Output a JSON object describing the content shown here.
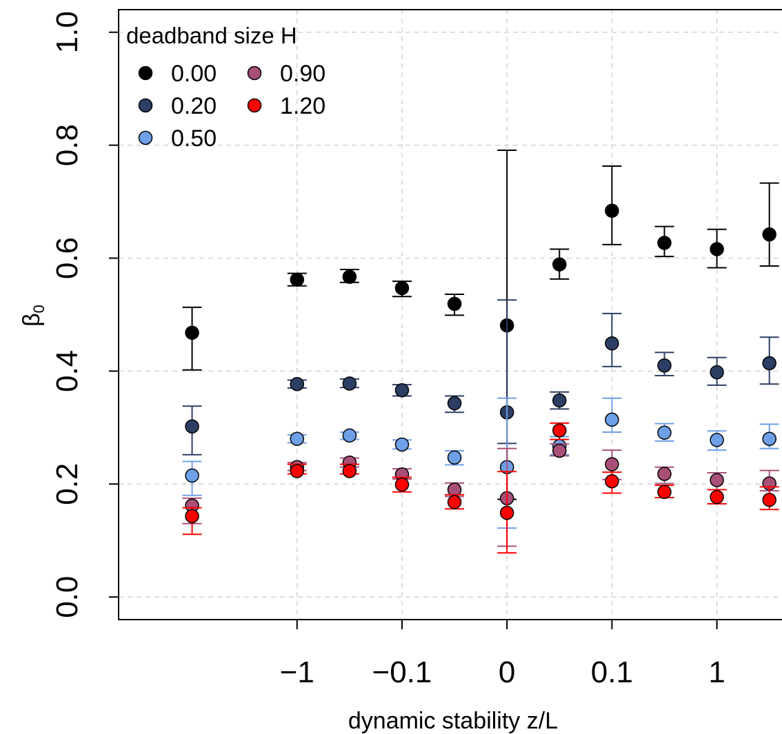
{
  "chart_data": {
    "type": "scatter",
    "xlabel": "dynamic stability z/L",
    "ylabel": "β",
    "ylabel_subscript": "0",
    "x_tick_labels": [
      "−1",
      "−0.1",
      "0",
      "0.1",
      "1"
    ],
    "y_ticks": [
      0.0,
      0.2,
      0.4,
      0.6,
      0.8,
      1.0
    ],
    "y_tick_labels": [
      "0.0",
      "0.2",
      "0.4",
      "0.6",
      "0.8",
      "1.0"
    ],
    "ylim": [
      -0.04,
      1.04
    ],
    "grid": true,
    "legend": {
      "title": "deadband size H",
      "placement": "top-left",
      "columns": 2
    },
    "series": [
      {
        "name": "0.00",
        "color": "#000000",
        "x": [
          -3,
          -2,
          -1.5,
          -1,
          -0.5,
          0,
          0.5,
          1,
          1.5,
          2,
          2.5
        ],
        "y": [
          0.468,
          0.562,
          0.567,
          0.547,
          0.519,
          0.481,
          0.589,
          0.684,
          0.627,
          0.616,
          0.642
        ],
        "err_low": [
          0.402,
          0.551,
          0.557,
          0.532,
          0.499,
          0.173,
          0.563,
          0.624,
          0.603,
          0.583,
          0.586
        ],
        "err_high": [
          0.513,
          0.573,
          0.58,
          0.559,
          0.536,
          0.791,
          0.616,
          0.763,
          0.656,
          0.651,
          0.733
        ]
      },
      {
        "name": "0.20",
        "color": "#2c3e63",
        "x": [
          -3,
          -2,
          -1.5,
          -1,
          -0.5,
          0,
          0.5,
          1,
          1.5,
          2,
          2.5
        ],
        "y": [
          0.302,
          0.377,
          0.378,
          0.366,
          0.343,
          0.327,
          0.348,
          0.449,
          0.41,
          0.398,
          0.414
        ],
        "err_low": [
          0.252,
          0.37,
          0.371,
          0.356,
          0.327,
          0.272,
          0.333,
          0.408,
          0.392,
          0.375,
          0.377
        ],
        "err_high": [
          0.338,
          0.384,
          0.386,
          0.376,
          0.356,
          0.526,
          0.363,
          0.502,
          0.433,
          0.424,
          0.46
        ]
      },
      {
        "name": "0.50",
        "color": "#6ea0e8",
        "x": [
          -3,
          -2,
          -1.5,
          -1,
          -0.5,
          0,
          0.5,
          1,
          1.5,
          2,
          2.5
        ],
        "y": [
          0.215,
          0.28,
          0.286,
          0.27,
          0.247,
          0.23,
          0.267,
          0.314,
          0.291,
          0.278,
          0.28
        ],
        "err_low": [
          0.18,
          0.273,
          0.279,
          0.262,
          0.234,
          0.122,
          0.252,
          0.292,
          0.276,
          0.26,
          0.263
        ],
        "err_high": [
          0.24,
          0.287,
          0.292,
          0.278,
          0.259,
          0.352,
          0.284,
          0.352,
          0.307,
          0.294,
          0.306
        ]
      },
      {
        "name": "0.90",
        "color": "#a84f78",
        "x": [
          -3,
          -2,
          -1.5,
          -1,
          -0.5,
          0,
          0.5,
          1,
          1.5,
          2,
          2.5
        ],
        "y": [
          0.162,
          0.23,
          0.238,
          0.217,
          0.19,
          0.175,
          0.259,
          0.235,
          0.218,
          0.207,
          0.201
        ],
        "err_low": [
          0.13,
          0.224,
          0.23,
          0.209,
          0.178,
          0.09,
          0.25,
          0.208,
          0.201,
          0.19,
          0.188
        ],
        "err_high": [
          0.175,
          0.238,
          0.246,
          0.227,
          0.202,
          0.263,
          0.271,
          0.26,
          0.23,
          0.22,
          0.224
        ]
      },
      {
        "name": "1.20",
        "color": "#ff0000",
        "x": [
          -3,
          -2,
          -1.5,
          -1,
          -0.5,
          0,
          0.5,
          1,
          1.5,
          2,
          2.5
        ],
        "y": [
          0.143,
          0.223,
          0.223,
          0.199,
          0.168,
          0.149,
          0.295,
          0.205,
          0.186,
          0.177,
          0.172
        ],
        "err_low": [
          0.111,
          0.218,
          0.218,
          0.186,
          0.156,
          0.078,
          0.279,
          0.184,
          0.176,
          0.165,
          0.155
        ],
        "err_high": [
          0.158,
          0.235,
          0.235,
          0.212,
          0.181,
          0.222,
          0.308,
          0.221,
          0.198,
          0.19,
          0.195
        ]
      }
    ]
  }
}
